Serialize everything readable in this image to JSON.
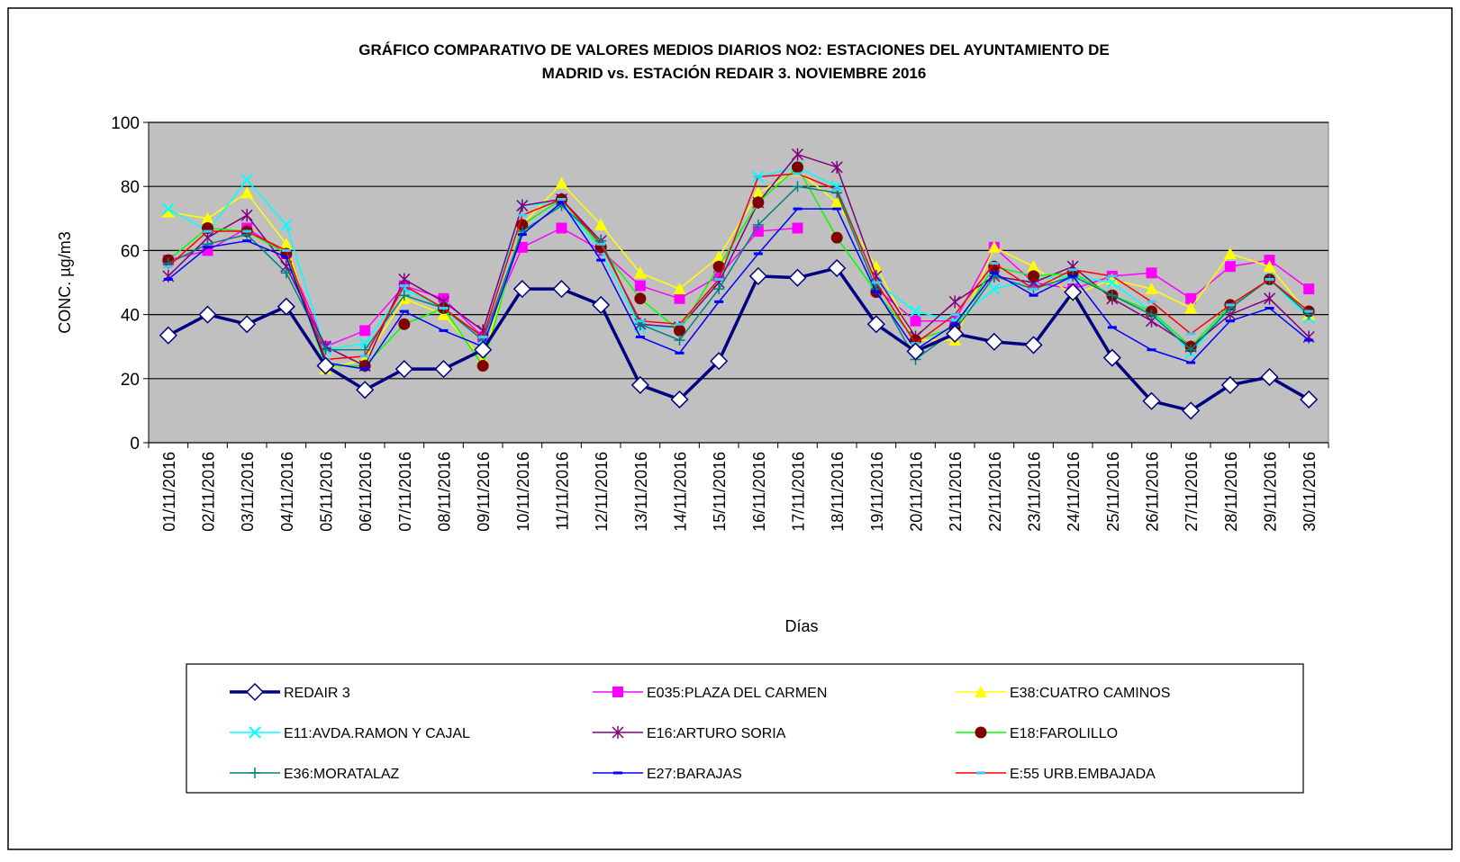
{
  "chart_data": {
    "type": "line",
    "title": [
      "GRÁFICO COMPARATIVO DE VALORES MEDIOS DIARIOS NO2: ESTACIONES DEL AYUNTAMIENTO DE",
      "MADRID vs.  ESTACIÓN REDAIR 3. NOVIEMBRE 2016"
    ],
    "x_label": "Días",
    "y_label": "CONC.   µg/m3",
    "categories": [
      "01/11/2016",
      "02/11/2016",
      "03/11/2016",
      "04/11/2016",
      "05/11/2016",
      "06/11/2016",
      "07/11/2016",
      "08/11/2016",
      "09/11/2016",
      "10/11/2016",
      "11/11/2016",
      "12/11/2016",
      "13/11/2016",
      "14/11/2016",
      "15/11/2016",
      "16/11/2016",
      "17/11/2016",
      "18/11/2016",
      "19/11/2016",
      "20/11/2016",
      "21/11/2016",
      "22/11/2016",
      "23/11/2016",
      "24/11/2016",
      "25/11/2016",
      "26/11/2016",
      "27/11/2016",
      "28/11/2016",
      "29/11/2016",
      "30/11/2016"
    ],
    "ylim": [
      0,
      100
    ],
    "yticks": [
      0,
      20,
      40,
      60,
      80,
      100
    ],
    "grid": true,
    "series": [
      {
        "name": "REDAIR 3",
        "color": "#000080",
        "marker": "diamond",
        "width": 3.5,
        "values": [
          33.5,
          40,
          37,
          42.5,
          24,
          16.5,
          23,
          23,
          29,
          48,
          48,
          43,
          18,
          13.5,
          25.5,
          52,
          51.5,
          54.5,
          37,
          28.5,
          34,
          31.5,
          30.5,
          47,
          26.5,
          13,
          10,
          18,
          20.5,
          13.5
        ]
      },
      {
        "name": "E035:PLAZA DEL CARMEN",
        "color": "#ff00ff",
        "marker": "square",
        "values": [
          57,
          60,
          67,
          59,
          30,
          35,
          49,
          45,
          33,
          61,
          67,
          60,
          49,
          45,
          52,
          66,
          67,
          null,
          48,
          38,
          38,
          61,
          50,
          48,
          52,
          53,
          45,
          55,
          57,
          48
        ]
      },
      {
        "name": "E38:CUATRO CAMINOS",
        "color": "#ffff00",
        "marker": "triangle",
        "values": [
          72,
          70,
          78,
          62,
          23,
          26,
          45,
          40,
          26,
          68,
          81,
          68,
          53,
          48,
          58,
          78,
          85,
          75,
          55,
          32,
          32,
          61,
          55,
          46,
          51,
          48,
          42,
          59,
          55,
          40
        ]
      },
      {
        "name": "E11:AVDA.RAMON Y CAJAL",
        "color": "#00ffff",
        "marker": "x",
        "values": [
          73,
          66,
          82,
          68,
          29,
          31,
          48,
          42,
          32,
          74,
          75,
          60,
          36,
          36,
          50,
          83,
          86,
          80,
          50,
          41,
          38,
          48,
          51,
          52,
          50,
          41,
          28,
          42,
          51,
          39
        ]
      },
      {
        "name": "E16:ARTURO SORIA",
        "color": "#800080",
        "marker": "star",
        "values": [
          52,
          64,
          71,
          55,
          30,
          24,
          51,
          44,
          35,
          74,
          76,
          63,
          37,
          36,
          50,
          75,
          90,
          86,
          52,
          33,
          44,
          52,
          50,
          55,
          45,
          38,
          30,
          40,
          45,
          33
        ]
      },
      {
        "name": "E18:FAROLILLO",
        "color": "#00ff00",
        "marker": "circle",
        "marker_color": "#800000",
        "values": [
          57,
          67,
          66,
          59,
          24,
          24,
          37,
          42,
          24,
          68,
          76,
          61,
          45,
          35,
          55,
          75,
          86,
          64,
          47,
          32,
          36,
          55,
          52,
          53,
          46,
          41,
          30,
          43,
          51,
          41
        ]
      },
      {
        "name": "E36:MORATALAZ",
        "color": "#008080",
        "marker": "plus",
        "values": [
          56,
          62,
          65,
          53,
          29,
          29,
          46,
          42,
          32,
          66,
          74,
          63,
          37,
          32,
          48,
          68,
          80,
          78,
          48,
          26,
          35,
          52,
          48,
          52,
          46,
          40,
          29,
          42,
          51,
          40
        ]
      },
      {
        "name": "E27:BARAJAS",
        "color": "#0000ff",
        "marker": "dash",
        "values": [
          51,
          61,
          63,
          58,
          25,
          23,
          41,
          35,
          30,
          65,
          75,
          57,
          33,
          28,
          44,
          59,
          73,
          73,
          47,
          29,
          37,
          53,
          46,
          52,
          36,
          29,
          25,
          38,
          42,
          32
        ]
      },
      {
        "name": "E:55 URB.EMBAJADA",
        "color": "#ff0000",
        "marker": "dash",
        "marker_color": "#33ccff",
        "values": [
          55,
          66,
          66,
          60,
          26,
          27,
          49,
          42,
          33,
          71,
          76,
          62,
          38,
          37,
          51,
          83,
          84,
          79,
          50,
          31,
          40,
          56,
          48,
          54,
          52,
          44,
          34,
          43,
          51,
          41
        ]
      }
    ]
  }
}
